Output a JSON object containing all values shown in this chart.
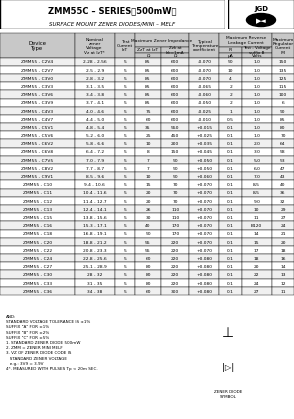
{
  "title": "ZMM55C – SERIES（500mW）",
  "subtitle": "SURFACE MOUNT ZENER DIODES/MINI – MELF",
  "header_row1": [
    "Device",
    "Nominal\nzener\nVoltage\nVz at IzT",
    "Test\nCurrent\nIzT",
    "Maximum Zener Impedance",
    "",
    "Typical\nTemperature\ncoefficient",
    "Maximum Reverse\nLeakage Current",
    "",
    "Maximum\nRegulator\nCurrent\nIM"
  ],
  "header_row2": [
    "Type",
    "",
    "mA",
    "ZzT at IzT",
    "Zzk at\nIzk = 1mA",
    "%/°C",
    "IR",
    "Test-Voltage\nsuffix B",
    ""
  ],
  "header_units": [
    "",
    "Volts",
    "mA",
    "Ω",
    "Ω",
    "%/°C",
    "μA",
    "Volts",
    "mA"
  ],
  "col_spans": {
    "Maximum Zener Impedance": 2,
    "Maximum Reverse Leakage Current": 2
  },
  "rows": [
    [
      "ZMM55 - C2V4",
      "2.28 - 2.56",
      "5",
      "85",
      "600",
      "-0.070",
      "50",
      "1.0",
      "150"
    ],
    [
      "ZMM55 - C2V7",
      "2.5 - 2.9",
      "5",
      "85",
      "600",
      "-0.070",
      "10",
      "1.0",
      "135"
    ],
    [
      "ZMM55 - C3V0",
      "2.8 - 3.2",
      "5",
      "85",
      "600",
      "-0.070",
      "4",
      "1.0",
      "125"
    ],
    [
      "ZMM55 - C3V3",
      "3.1 - 3.5",
      "5",
      "85",
      "600",
      "-0.065",
      "2",
      "1.0",
      "115"
    ],
    [
      "ZMM55 - C3V6",
      "3.4 - 3.8",
      "5",
      "85",
      "600",
      "-0.060",
      "2",
      "1.0",
      "100"
    ],
    [
      "ZMM55 - C3V9",
      "3.7 - 4.1",
      "5",
      "85",
      "600",
      "-0.050",
      "2",
      "1.0",
      "6"
    ],
    [
      "ZMM55 - C4V3",
      "4.0 - 4.6",
      "5",
      "75",
      "600",
      "-0.025",
      "1",
      "1.0",
      "90"
    ],
    [
      "ZMM55 - C4V7",
      "4.4 - 5.0",
      "5",
      "60",
      "600",
      "-0.010",
      "0.5",
      "1.0",
      "85"
    ],
    [
      "ZMM55 - C5V1",
      "4.8 - 5.4",
      "5",
      "35",
      "550",
      "+0.015",
      "0.1",
      "1.0",
      "80"
    ],
    [
      "ZMM55 - C5V6",
      "5.2 - 6.0",
      "5",
      "25",
      "450",
      "+0.025",
      "0.1",
      "1.0",
      "70"
    ],
    [
      "ZMM55 - C6V2",
      "5.8 - 6.6",
      "5",
      "10",
      "200",
      "+0.035",
      "0.1",
      "2.0",
      "64"
    ],
    [
      "ZMM55 - C6V8",
      "6.4 - 7.2",
      "5",
      "8",
      "150",
      "+0.045",
      "0.1",
      "3.0",
      "58"
    ],
    [
      "ZMM55 - C7V5",
      "7.0 - 7.9",
      "5",
      "7",
      "50",
      "+0.050",
      "0.1",
      "5.0",
      "53"
    ],
    [
      "ZMM55 - C8V2",
      "7.7 - 8.7",
      "5",
      "7",
      "50",
      "+0.050",
      "0.1",
      "6.0",
      "47"
    ],
    [
      "ZMM55 - C9V1",
      "8.5 - 9.6",
      "5",
      "10",
      "50",
      "+0.060",
      "0.1",
      "7.0",
      "43"
    ],
    [
      "ZMM55 - C10",
      "9.4 - 10.6",
      "5",
      "15",
      "70",
      "+0.070",
      "0.1",
      "8.5",
      "40"
    ],
    [
      "ZMM55 - C11",
      "10.4 - 11.6",
      "5",
      "20",
      "70",
      "+0.070",
      "0.1",
      "8.5",
      "36"
    ],
    [
      "ZMM55 - C12",
      "11.4 - 12.7",
      "5",
      "20",
      "70",
      "+0.070",
      "0.1",
      "9.0",
      "32"
    ],
    [
      "ZMM55 - C13",
      "12.4 - 14.1",
      "5",
      "26",
      "110",
      "+0.070",
      "0.1",
      "10",
      "29"
    ],
    [
      "ZMM55 - C15",
      "13.8 - 15.6",
      "5",
      "30",
      "110",
      "+0.070",
      "0.1",
      "11",
      "27"
    ],
    [
      "ZMM55 - C16",
      "15.3 - 17.1",
      "5",
      "40",
      "170",
      "+0.070",
      "0.1",
      "B120",
      "24"
    ],
    [
      "ZMM55 - C18",
      "16.8 - 19.1",
      "5",
      "50",
      "170",
      "+0.070",
      "0.1",
      "14",
      "21"
    ],
    [
      "ZMM55 - C20",
      "18.8 - 21.2",
      "5",
      "55",
      "220",
      "+0.070",
      "0.1",
      "15",
      "20"
    ],
    [
      "ZMM55 - C22",
      "20.8 - 23.3",
      "5",
      "55",
      "220",
      "+0.070",
      "0.1",
      "17",
      "18"
    ],
    [
      "ZMM55 - C24",
      "22.8 - 25.6",
      "5",
      "60",
      "220",
      "+0.080",
      "0.1",
      "18",
      "16"
    ],
    [
      "ZMM55 - C27",
      "25.1 - 28.9",
      "5",
      "80",
      "220",
      "+0.080",
      "0.1",
      "20",
      "14"
    ],
    [
      "ZMM55 - C30",
      "28 - 32",
      "5",
      "80",
      "220",
      "+0.080",
      "0.1",
      "22",
      "13"
    ],
    [
      "ZMM55 - C33",
      "31 - 35",
      "5",
      "80",
      "220",
      "+0.080",
      "0.1",
      "24",
      "12"
    ],
    [
      "ZMM55 - C36",
      "34 - 38",
      "5",
      "60",
      "300",
      "+0.080",
      "0.1",
      "27",
      "11"
    ]
  ],
  "notes": [
    "AND:",
    "STANDARD VOLTAGE TOLERANCE IS ±1%",
    "SUFFIX \"A\" FOR ±1%",
    "SUFFIX \"B\" FOR ±2%",
    "SUFFIX \"C\" FOR ±5%",
    "1. STANDARD ZENER DIODE 500mW",
    "2. ZMM = ZENER MINI MELF",
    "3. VZ OF ZENER DIODE CODE IS",
    "   STANDARD ZENER VOLTAGE",
    "   e.g.: 3V9 = 3.9V",
    "4*. MEASURED WITH PULSES Tp < 20m SEC."
  ],
  "bg_color": "#ffffff",
  "header_bg": "#d3d3d3",
  "row_colors": [
    "#f0f0f0",
    "#ffffff"
  ],
  "border_color": "#000000",
  "text_color": "#000000",
  "title_bg": "#ffffff"
}
